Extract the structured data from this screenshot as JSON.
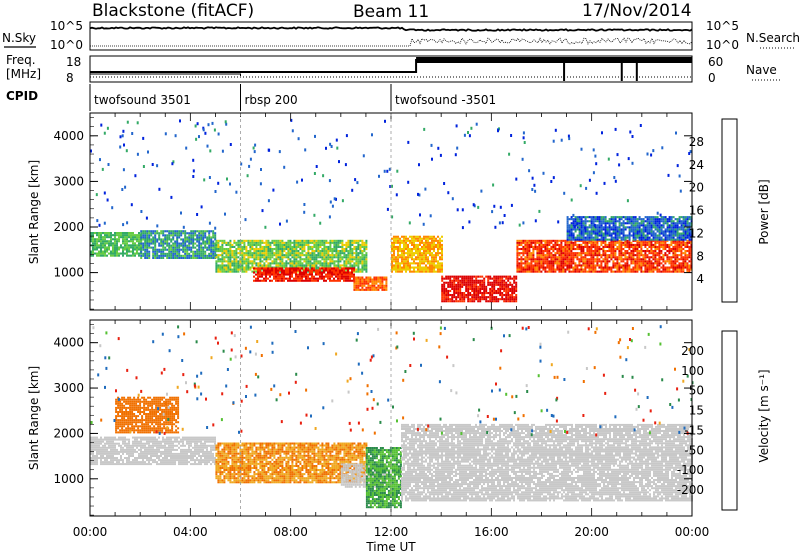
{
  "header": {
    "station": "Blackstone (fitACF)",
    "beam": "Beam 11",
    "date": "17/Nov/2014"
  },
  "strip": {
    "left_labels": {
      "nsky": "N.Sky",
      "freq_line1": "Freq.",
      "freq_line2": "[MHz]",
      "cpid": "CPID"
    },
    "right_labels": {
      "nsearch": "N.Search",
      "nave": "Nave"
    },
    "noise_ticks_left": [
      "10^5",
      "10^0"
    ],
    "noise_ticks_right": [
      "10^5",
      "10^0"
    ],
    "freq_ticks": [
      "18",
      "8"
    ],
    "nave_ticks": [
      "60",
      "0"
    ]
  },
  "cpid_segments": [
    {
      "label": "twofsound 3501",
      "start_h": 0
    },
    {
      "label": "rbsp 200",
      "start_h": 6
    },
    {
      "label": "twofsound -3501",
      "start_h": 12
    }
  ],
  "panels": {
    "ylabel": "Slant Range [km]",
    "yticks": [
      "1000",
      "2000",
      "3000",
      "4000"
    ],
    "xlabel": "Time UT",
    "xticks": [
      "00:00",
      "04:00",
      "08:00",
      "12:00",
      "16:00",
      "20:00",
      "00:00"
    ]
  },
  "colorbars": {
    "power": {
      "title": "Power [dB]",
      "levels": [
        "4",
        "8",
        "12",
        "16",
        "20",
        "24",
        "28"
      ],
      "colors": [
        "#0022dd",
        "#2266cc",
        "#33aa66",
        "#66cc44",
        "#eecc00",
        "#ff8800",
        "#ff3300",
        "#dd0000"
      ]
    },
    "velocity": {
      "title": "Velocity [m s⁻¹]",
      "levels": [
        "200",
        "100",
        "50",
        "15",
        "-15",
        "-50",
        "-100",
        "-200"
      ],
      "colors": [
        "#1a2f9a",
        "#1f6bbd",
        "#2a8a4a",
        "#55c033",
        "#c8c8c8",
        "#f0a820",
        "#f07000",
        "#e82010",
        "#dd0000"
      ]
    }
  },
  "chart_data": [
    {
      "type": "heatmap",
      "name": "Power",
      "x_range_h": [
        0,
        24
      ],
      "y_range_km": [
        180,
        4500
      ],
      "colorbar_range_db": [
        0,
        32
      ],
      "bands": [
        {
          "t0": 0.0,
          "t1": 2.0,
          "r0": 1350,
          "r1": 1850,
          "v": 12
        },
        {
          "t0": 2.0,
          "t1": 5.0,
          "r0": 1300,
          "r1": 1900,
          "v": 9
        },
        {
          "t0": 5.0,
          "t1": 11.0,
          "r0": 1000,
          "r1": 1700,
          "v": 14
        },
        {
          "t0": 6.5,
          "t1": 10.5,
          "r0": 800,
          "r1": 1100,
          "v": 28
        },
        {
          "t0": 10.5,
          "t1": 11.8,
          "r0": 600,
          "r1": 900,
          "v": 24
        },
        {
          "t0": 12.0,
          "t1": 14.0,
          "r0": 1000,
          "r1": 1800,
          "v": 20
        },
        {
          "t0": 14.0,
          "t1": 17.0,
          "r0": 350,
          "r1": 900,
          "v": 30
        },
        {
          "t0": 17.0,
          "t1": 24.0,
          "r0": 1000,
          "r1": 1700,
          "v": 26
        },
        {
          "t0": 19.0,
          "t1": 24.0,
          "r0": 1700,
          "r1": 2200,
          "v": 6
        }
      ]
    },
    {
      "type": "heatmap",
      "name": "Velocity",
      "x_range_h": [
        0,
        24
      ],
      "y_range_km": [
        180,
        4500
      ],
      "colorbar_range_ms": [
        -250,
        250
      ],
      "bands": [
        {
          "t0": 0.0,
          "t1": 5.0,
          "r0": 1300,
          "r1": 1900,
          "v": 0
        },
        {
          "t0": 1.0,
          "t1": 3.5,
          "r0": 2000,
          "r1": 2800,
          "v": -60
        },
        {
          "t0": 5.0,
          "t1": 11.0,
          "r0": 900,
          "r1": 1800,
          "v": -30
        },
        {
          "t0": 10.0,
          "t1": 11.8,
          "r0": 800,
          "r1": 1300,
          "v": 0
        },
        {
          "t0": 11.0,
          "t1": 12.4,
          "r0": 350,
          "r1": 1700,
          "v": 30
        },
        {
          "t0": 12.4,
          "t1": 24.0,
          "r0": 500,
          "r1": 2200,
          "v": 0
        }
      ]
    }
  ]
}
